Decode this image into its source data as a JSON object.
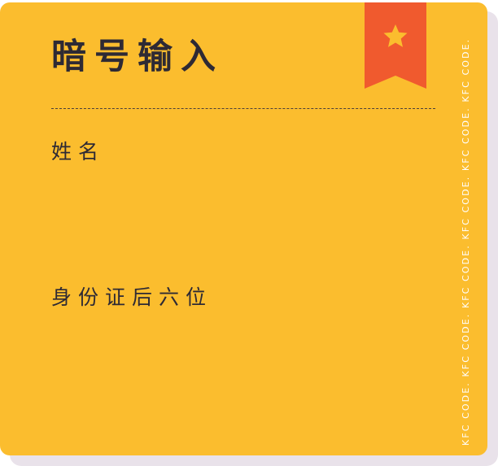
{
  "card": {
    "title": "暗号输入",
    "fields": [
      {
        "label": "姓名",
        "value": ""
      },
      {
        "label": "身份证后六位",
        "value": ""
      }
    ],
    "side_text": "KFC CODE. KFC CODE. KFC CODE. KFC CODE. KFC CODE. KFC CODE.",
    "ribbon_icon": "star-icon"
  },
  "colors": {
    "card_background": "#fbbd2e",
    "card_shadow": "#e9e2ea",
    "ribbon": "#f05a2e",
    "star": "#fbbd2e",
    "text": "#2e2a34",
    "side_text": "#ffffff"
  }
}
